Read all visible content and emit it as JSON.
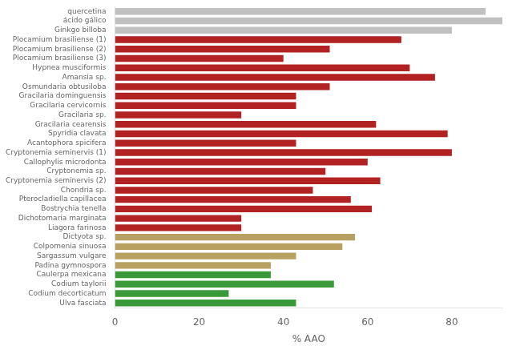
{
  "chart_data": {
    "type": "bar",
    "orientation": "horizontal",
    "categories": [
      "quercetina",
      "ácido gálico",
      "Ginkgo billoba",
      "Plocamium brasiliense (1)",
      "Plocamium brasiliense (2)",
      "Plocamium brasiliense (3)",
      "Hypnea musciformis",
      "Amansia sp.",
      "Osmundaria obtusiloba",
      "Gracilaria dominguensis",
      "Gracilaria cervicornis",
      "Gracilaria sp.",
      "Gracilaria cearensis",
      "Spyridia clavata",
      "Acantophora spicifera",
      "Cryptonemia seminervis (1)",
      "Callophylis microdonta",
      "Cryptonemia sp.",
      "Cryptonemia seminervis (2)",
      "Chondria sp.",
      "Pterocladiella capillacea",
      "Bostrychia tenella",
      "Dichotomaria marginata",
      "Liagora farinosa",
      "Dictyota sp.",
      "Colpomenia sinuosa",
      "Sargassum vulgare",
      "Padina gymnospora",
      "Caulerpa mexicana",
      "Codium taylorii",
      "Codium decorticatum",
      "Ulva fasciata"
    ],
    "values": [
      88,
      92,
      80,
      68,
      51,
      40,
      70,
      76,
      51,
      43,
      43,
      30,
      62,
      79,
      43,
      80,
      60,
      50,
      63,
      47,
      56,
      61,
      30,
      30,
      57,
      54,
      43,
      37,
      37,
      52,
      27,
      43
    ],
    "colors": [
      "#c0c0c0",
      "#c0c0c0",
      "#c0c0c0",
      "#b22222",
      "#b22222",
      "#b22222",
      "#b22222",
      "#b22222",
      "#b22222",
      "#b22222",
      "#b22222",
      "#b22222",
      "#b22222",
      "#b22222",
      "#b22222",
      "#b22222",
      "#b22222",
      "#b22222",
      "#b22222",
      "#b22222",
      "#b22222",
      "#b22222",
      "#b22222",
      "#b22222",
      "#b8a060",
      "#b8a060",
      "#b8a060",
      "#b8a060",
      "#3a9a3a",
      "#3a9a3a",
      "#3a9a3a",
      "#3a9a3a"
    ],
    "xlabel": "% AAO",
    "xlim": [
      0,
      92
    ],
    "xticks": [
      0,
      20,
      40,
      60,
      80
    ],
    "grid": false
  }
}
